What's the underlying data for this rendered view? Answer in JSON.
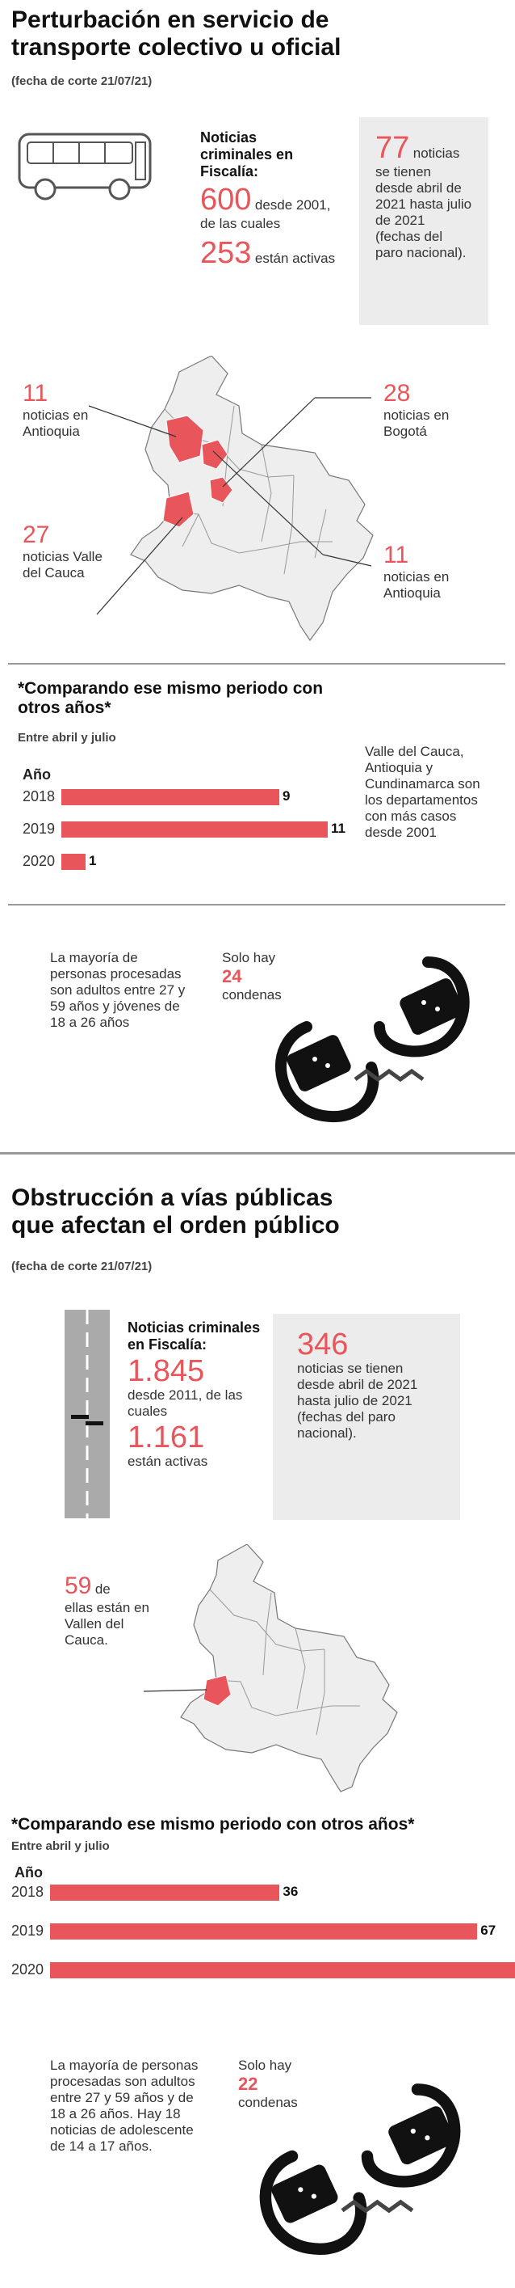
{
  "section1": {
    "title_line1": "Perturbación en servicio de",
    "title_line2": "transporte colectivo u oficial",
    "cutoff": "(fecha de corte 21/07/21)",
    "news_label": "Noticias criminales en Fiscalía:",
    "total": "600",
    "total_text": "desde 2001, de las cuales",
    "active": "253",
    "active_text": "están activas",
    "box_number": "77",
    "box_text1": "noticias",
    "box_text2": "se tienen desde abril de 2021 hasta julio de 2021 (fechas del paro nacional).",
    "map_labels": [
      {
        "num": "11",
        "text": "noticias en Antioquia"
      },
      {
        "num": "28",
        "text": "noticias en Bogotá"
      },
      {
        "num": "27",
        "text": "noticias Valle del Cauca"
      },
      {
        "num": "11",
        "text": "noticias en Antioquia"
      }
    ],
    "compare_title": "*Comparando ese mismo periodo con otros años*",
    "compare_sub": "Entre abril y julio",
    "year_header": "Año",
    "side_note": "Valle del Cauca, Antioquia y Cundinamarca son los departamentos con más casos desde 2001",
    "prosecuted": "La mayoría de personas procesadas son adultos entre 27 y 59 años y jóvenes de 18 a 26 años",
    "conv_pre": "Solo hay",
    "conv_num": "24",
    "conv_post": "condenas"
  },
  "section2": {
    "title_line1": "Obstrucción a vías públicas",
    "title_line2": "que afectan el orden público",
    "cutoff": "(fecha de corte 21/07/21)",
    "news_label": "Noticias criminales en Fiscalía:",
    "total": "1.845",
    "total_text": "desde 2011, de las cuales",
    "active": "1.161",
    "active_text": "están activas",
    "box_number": "346",
    "box_text": "noticias se tienen desde abril de 2021 hasta julio de 2021 (fechas del paro nacional).",
    "map_num": "59",
    "map_text1": "de",
    "map_text2": "ellas están en Vallen del Cauca.",
    "compare_title": "*Comparando ese mismo periodo con otros años*",
    "compare_sub": "Entre abril y julio",
    "year_header": "Año",
    "prosecuted": "La mayoría de personas procesadas son adultos entre 27 y 59 años y de 18 a 26 años. Hay 18 noticias de adolescente de 14 a 17 años.",
    "conv_pre": "Solo hay",
    "conv_num": "22",
    "conv_post": "condenas"
  },
  "chart_data": [
    {
      "type": "bar",
      "orientation": "horizontal",
      "title": "*Comparando ese mismo periodo con otros años*",
      "subtitle": "Entre abril y julio",
      "ylabel": "Año",
      "categories": [
        "2018",
        "2019",
        "2020"
      ],
      "values": [
        9,
        11,
        1
      ],
      "grid": false
    },
    {
      "type": "bar",
      "orientation": "horizontal",
      "title": "*Comparando ese mismo periodo con otros años*",
      "subtitle": "Entre abril y julio",
      "ylabel": "Año",
      "categories": [
        "2018",
        "2019",
        "2020"
      ],
      "values": [
        36,
        67,
        73
      ],
      "grid": false
    }
  ],
  "colors": {
    "accent": "#e8555b",
    "box": "#ececec",
    "map": "#eeeeee",
    "dark": "#222222"
  }
}
